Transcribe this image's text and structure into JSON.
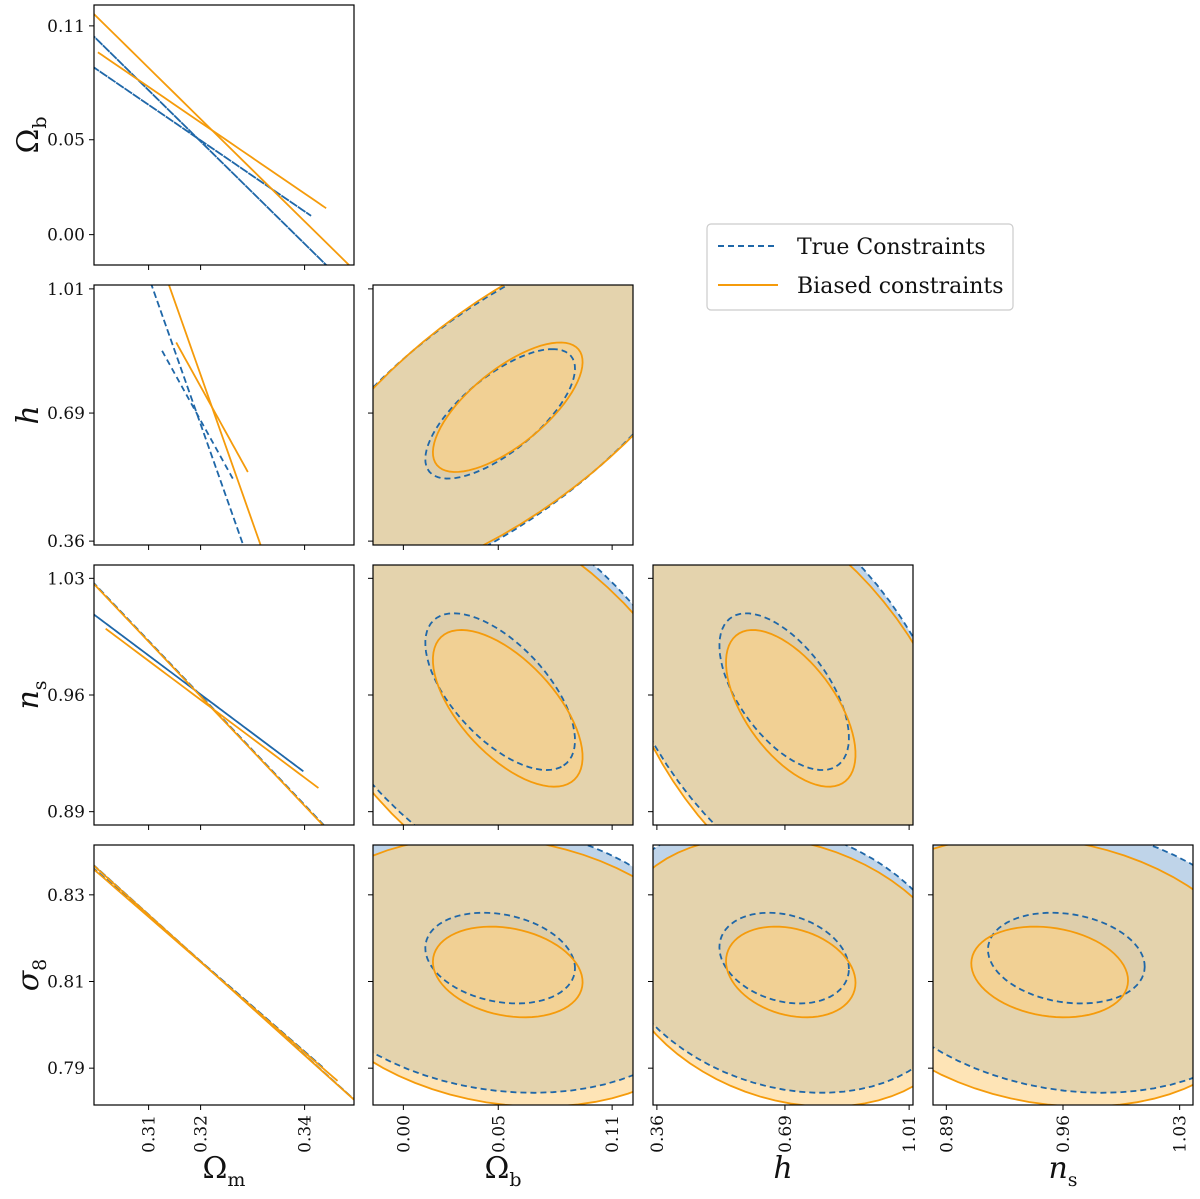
{
  "colors": {
    "true": "#1f67a8",
    "true_fill": "#aac6e2",
    "biased": "#f59b0b",
    "biased_fill": "#fdd286"
  },
  "legend": {
    "placement": "upper-right",
    "entries": [
      {
        "label": "True Constraints",
        "style": "dashed",
        "color": "#1f67a8"
      },
      {
        "label": "Biased constraints",
        "style": "solid",
        "color": "#f59b0b"
      }
    ]
  },
  "chart_data": {
    "type": "scatter",
    "title": "",
    "parameters": [
      {
        "key": "om",
        "label_base": "Ω",
        "label_sub": "m",
        "ticks": [
          "0.31",
          "0.32",
          "0.34"
        ],
        "tick_values": [
          0.31,
          0.32,
          0.34
        ],
        "range": [
          0.2995,
          0.3495
        ]
      },
      {
        "key": "ob",
        "label_base": "Ω",
        "label_sub": "b",
        "ticks": [
          "0.00",
          "0.05",
          "0.11"
        ],
        "tick_values": [
          0.0,
          0.05,
          0.11
        ],
        "range": [
          -0.016,
          0.121
        ]
      },
      {
        "key": "h",
        "label_base": "h",
        "label_sub": "",
        "ticks": [
          "0.36",
          "0.69",
          "1.01"
        ],
        "tick_values": [
          0.36,
          0.69,
          1.01
        ],
        "range": [
          0.35,
          1.02
        ]
      },
      {
        "key": "ns",
        "label_base": "n",
        "label_sub": "s",
        "ticks": [
          "0.89",
          "0.96",
          "1.03"
        ],
        "tick_values": [
          0.89,
          0.96,
          1.03
        ],
        "range": [
          0.882,
          1.038
        ]
      },
      {
        "key": "s8",
        "label_base": "σ",
        "label_sub": "8",
        "ticks": [
          "0.79",
          "0.81",
          "0.83"
        ],
        "tick_values": [
          0.79,
          0.81,
          0.83
        ],
        "range": [
          0.7815,
          0.8415
        ]
      }
    ],
    "series": [
      {
        "name": "True Constraints",
        "ellipses": [
          {
            "row": "ob",
            "col": "om",
            "cx": 0.3193,
            "cy": 0.051,
            "inner": [
              0.0026,
              0.026,
              -0.0005
            ],
            "outer": [
              0.0048,
              0.046,
              -0.0009
            ]
          },
          {
            "row": "h",
            "col": "om",
            "cx": 0.3193,
            "cy": 0.688,
            "inner": [
              0.0026,
              0.11,
              -0.0005
            ],
            "outer": [
              0.0048,
              0.185,
              -0.0009
            ]
          },
          {
            "row": "ns",
            "col": "om",
            "cx": 0.3193,
            "cy": 0.962,
            "inner": [
              0.0026,
              0.031,
              -0.0005
            ],
            "outer": [
              0.0048,
              0.052,
              -0.0009
            ]
          },
          {
            "row": "s8",
            "col": "om",
            "cx": 0.3193,
            "cy": 0.8154,
            "inner": [
              0.0026,
              0.0069,
              -0.0005
            ],
            "outer": [
              0.0048,
              0.0127,
              -0.0009
            ]
          },
          {
            "row": "h",
            "col": "ob",
            "cx": 0.051,
            "cy": 0.688,
            "inner": [
              0.026,
              0.11,
              0.002
            ],
            "outer": [
              0.046,
              0.185,
              0.006
            ]
          },
          {
            "row": "ns",
            "col": "ob",
            "cx": 0.051,
            "cy": 0.962,
            "inner": [
              0.026,
              0.031,
              -0.0005
            ],
            "outer": [
              0.046,
              0.052,
              -0.0011
            ]
          },
          {
            "row": "ns",
            "col": "h",
            "cx": 0.688,
            "cy": 0.962,
            "inner": [
              0.11,
              0.031,
              -0.002
            ],
            "outer": [
              0.185,
              0.052,
              -0.0045
            ]
          },
          {
            "row": "s8",
            "col": "ob",
            "cx": 0.051,
            "cy": 0.8154,
            "inner": [
              0.026,
              0.0069,
              -4e-05
            ],
            "outer": [
              0.046,
              0.0127,
              -9e-05
            ]
          },
          {
            "row": "s8",
            "col": "h",
            "cx": 0.688,
            "cy": 0.8154,
            "inner": [
              0.11,
              0.0069,
              -0.00018
            ],
            "outer": [
              0.185,
              0.0127,
              -0.0005
            ]
          },
          {
            "row": "s8",
            "col": "ns",
            "cx": 0.962,
            "cy": 0.8154,
            "inner": [
              0.031,
              0.0069,
              -4e-05
            ],
            "outer": [
              0.052,
              0.0127,
              -0.00011
            ]
          }
        ]
      },
      {
        "name": "Biased constraints",
        "ellipses": [
          {
            "row": "ob",
            "col": "om",
            "cx": 0.3222,
            "cy": 0.055,
            "inner": [
              0.0026,
              0.026,
              -0.0005
            ],
            "outer": [
              0.0048,
              0.046,
              -0.0009
            ]
          },
          {
            "row": "h",
            "col": "om",
            "cx": 0.3222,
            "cy": 0.705,
            "inner": [
              0.0026,
              0.11,
              -0.0005
            ],
            "outer": [
              0.0048,
              0.185,
              -0.0009
            ]
          },
          {
            "row": "ns",
            "col": "om",
            "cx": 0.3222,
            "cy": 0.952,
            "inner": [
              0.0026,
              0.031,
              -0.0005
            ],
            "outer": [
              0.0048,
              0.052,
              -0.0009
            ]
          },
          {
            "row": "s8",
            "col": "om",
            "cx": 0.3222,
            "cy": 0.8122,
            "inner": [
              0.0026,
              0.0069,
              -0.0005
            ],
            "outer": [
              0.0048,
              0.0127,
              -0.0009
            ]
          },
          {
            "row": "h",
            "col": "ob",
            "cx": 0.055,
            "cy": 0.705,
            "inner": [
              0.026,
              0.11,
              0.002
            ],
            "outer": [
              0.046,
              0.185,
              0.006
            ]
          },
          {
            "row": "ns",
            "col": "ob",
            "cx": 0.055,
            "cy": 0.952,
            "inner": [
              0.026,
              0.031,
              -0.0005
            ],
            "outer": [
              0.046,
              0.052,
              -0.0011
            ]
          },
          {
            "row": "ns",
            "col": "h",
            "cx": 0.705,
            "cy": 0.952,
            "inner": [
              0.11,
              0.031,
              -0.002
            ],
            "outer": [
              0.185,
              0.052,
              -0.0045
            ]
          },
          {
            "row": "s8",
            "col": "ob",
            "cx": 0.055,
            "cy": 0.8122,
            "inner": [
              0.026,
              0.0069,
              -4e-05
            ],
            "outer": [
              0.046,
              0.0127,
              -9e-05
            ]
          },
          {
            "row": "s8",
            "col": "h",
            "cx": 0.705,
            "cy": 0.8122,
            "inner": [
              0.11,
              0.0069,
              -0.00018
            ],
            "outer": [
              0.185,
              0.0127,
              -0.0005
            ]
          },
          {
            "row": "s8",
            "col": "ns",
            "cx": 0.952,
            "cy": 0.8122,
            "inner": [
              0.031,
              0.0069,
              -4e-05
            ],
            "outer": [
              0.052,
              0.0127,
              -0.00011
            ]
          }
        ]
      }
    ],
    "grid": false
  }
}
